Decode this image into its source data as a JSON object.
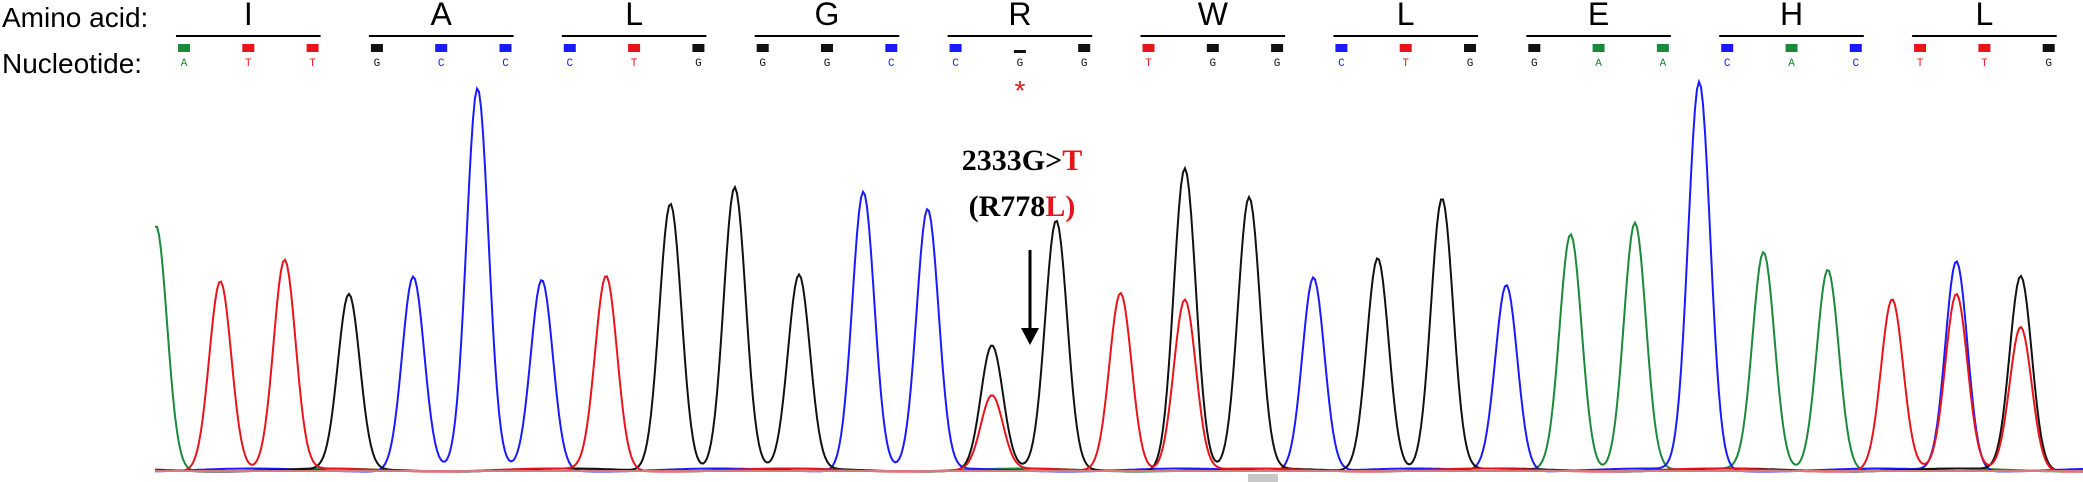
{
  "labels": {
    "amino_acid": "Amino acid:",
    "nucleotide": "Nucleotide:"
  },
  "colors": {
    "A": "#1a8a3a",
    "C": "#1a1aff",
    "G": "#111111",
    "T": "#e8141c",
    "annotation_red": "#e8141c",
    "annotation_black": "#000000"
  },
  "amino_acids": [
    "I",
    "A",
    "L",
    "G",
    "R",
    "W",
    "L",
    "E",
    "H",
    "L"
  ],
  "nucleotides": [
    "A",
    "T",
    "T",
    "G",
    "C",
    "C",
    "C",
    "T",
    "G",
    "G",
    "G",
    "C",
    "C",
    "G",
    "G",
    "T",
    "G",
    "G",
    "C",
    "T",
    "G",
    "G",
    "A",
    "A",
    "C",
    "A",
    "C",
    "T",
    "T",
    "G"
  ],
  "mutation": {
    "position_index": 13,
    "marker": "*",
    "line1_black": "2333G>",
    "line1_red": "T",
    "line2_prefix": "(R778",
    "line2_red": "L",
    "line2_suffix": ")"
  },
  "trace_peaks": {
    "A": [
      0.63,
      0.61,
      0.64,
      0.56,
      0.52
    ],
    "C": [
      0.5,
      0.98,
      0.49,
      0.72,
      0.67,
      0.5,
      0.48,
      1.0,
      0.54
    ],
    "G": [
      0.45,
      0.69,
      0.73,
      0.5,
      0.32,
      0.64,
      0.78,
      0.7,
      0.55,
      0.7,
      0.5
    ],
    "T": [
      0.49,
      0.54,
      0.5,
      0.19,
      0.46,
      0.44,
      0.44,
      0.45,
      0.37
    ],
    "positions": {
      "A": [
        0,
        22,
        23,
        25,
        26
      ],
      "C": [
        4,
        5,
        6,
        11,
        12,
        18,
        21,
        24,
        28
      ],
      "G": [
        3,
        8,
        9,
        10,
        13,
        14,
        16,
        17,
        19,
        20,
        29
      ],
      "T": [
        1,
        2,
        7,
        13,
        15,
        16,
        27,
        28,
        29
      ]
    }
  }
}
